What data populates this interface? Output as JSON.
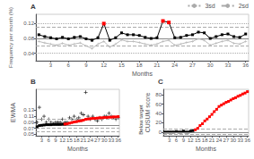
{
  "chart_data": [
    {
      "type": "line",
      "title": "A",
      "xlabel": "Months",
      "ylabel": "Frequency per month (%)",
      "xlim": [
        0.5,
        36.5
      ],
      "ylim": [
        0.02,
        0.145
      ],
      "xticks": [
        3,
        6,
        9,
        12,
        15,
        18,
        21,
        24,
        27,
        30,
        33,
        36
      ],
      "yticks": [
        0.04,
        0.08,
        0.12
      ],
      "grid": false,
      "legend": "upper right",
      "series": [
        {
          "type": "hline",
          "values": [
            0.08
          ],
          "color": "#888888",
          "line_style": "solid"
        },
        {
          "name": "3sd",
          "type": "hline",
          "values": [
            0.122,
            0.038
          ],
          "color": "#aaaaaa",
          "line_style": "dotted"
        },
        {
          "name": "2sd",
          "type": "hline",
          "values": [
            0.107,
            0.055
          ],
          "color": "#aaaaaa",
          "line_style": "dashed"
        },
        {
          "type": "line",
          "color": "#bbbbbb",
          "marker": "cross",
          "x": [
            1,
            2,
            3,
            4,
            5,
            6,
            7,
            8,
            9,
            10,
            11,
            12,
            13,
            14,
            15,
            16,
            17,
            18,
            19,
            20,
            21,
            22,
            23,
            24,
            25,
            26,
            27,
            28,
            29,
            30,
            31,
            32,
            33,
            34,
            35,
            36
          ],
          "values": [
            0.072,
            0.068,
            0.065,
            0.062,
            0.067,
            0.062,
            0.065,
            0.068,
            0.06,
            0.053,
            0.065,
            0.072,
            0.057,
            0.065,
            0.076,
            0.072,
            0.072,
            0.069,
            0.065,
            0.062,
            0.065,
            0.072,
            0.075,
            0.062,
            0.065,
            0.069,
            0.072,
            0.079,
            0.075,
            0.062,
            0.067,
            0.072,
            0.075,
            0.067,
            0.065,
            0.072
          ]
        },
        {
          "type": "line",
          "color": "#000000",
          "marker": "square",
          "x": [
            1,
            2,
            3,
            4,
            5,
            6,
            7,
            8,
            9,
            10,
            11,
            12,
            13,
            14,
            15,
            16,
            17,
            18,
            19,
            20,
            21,
            22,
            23,
            24,
            25,
            26,
            27,
            28,
            29,
            30,
            31,
            32,
            33,
            34,
            35,
            36
          ],
          "values": [
            0.09,
            0.085,
            0.082,
            0.079,
            0.083,
            0.079,
            0.083,
            0.085,
            0.079,
            0.075,
            0.082,
            0.12,
            0.075,
            0.082,
            0.095,
            0.09,
            0.09,
            0.088,
            0.083,
            0.08,
            0.082,
            0.127,
            0.123,
            0.082,
            0.083,
            0.088,
            0.09,
            0.097,
            0.095,
            0.08,
            0.085,
            0.09,
            0.092,
            0.085,
            0.083,
            0.092
          ],
          "colors": [
            "#000000",
            "#000000",
            "#000000",
            "#000000",
            "#000000",
            "#000000",
            "#000000",
            "#000000",
            "#000000",
            "#000000",
            "#000000",
            "#ff0000",
            "#000000",
            "#000000",
            "#000000",
            "#000000",
            "#000000",
            "#000000",
            "#000000",
            "#000000",
            "#000000",
            "#ff0000",
            "#ff0000",
            "#000000",
            "#000000",
            "#000000",
            "#000000",
            "#000000",
            "#000000",
            "#000000",
            "#000000",
            "#000000",
            "#000000",
            "#000000",
            "#000000",
            "#000000"
          ]
        }
      ]
    },
    {
      "type": "line",
      "title": "B",
      "xlabel": "Months",
      "ylabel": "EWMA",
      "xlim": [
        0.5,
        36.5
      ],
      "ylim": [
        0.045,
        0.2
      ],
      "xticks": [
        3,
        6,
        9,
        12,
        15,
        18,
        21,
        24,
        27,
        30,
        33,
        36
      ],
      "yticks": [
        0.05,
        0.07,
        0.09,
        0.11,
        0.13
      ],
      "grid": false,
      "series": [
        {
          "type": "hline",
          "values": [
            0.08
          ],
          "color": "#888888",
          "line_style": "solid"
        },
        {
          "type": "hline",
          "values": [
            0.095,
            0.067,
            0.057
          ],
          "color": "#aaaaaa",
          "line_style": "dashed"
        },
        {
          "type": "scatter",
          "color": "#000000",
          "marker": "cross",
          "x": [
            1,
            2,
            3,
            4,
            5,
            6,
            7,
            8,
            9,
            10,
            11,
            12,
            13,
            14,
            15,
            16,
            17,
            18,
            19,
            20,
            21,
            22,
            23,
            24,
            25,
            26,
            27,
            28,
            29,
            30,
            31,
            32,
            33,
            34,
            35,
            36
          ],
          "values": [
            0.09,
            0.14,
            0.1,
            0.11,
            0.09,
            0.1,
            0.09,
            0.085,
            0.09,
            0.09,
            0.09,
            0.1,
            0.09,
            0.09,
            0.105,
            0.1,
            0.11,
            0.1,
            0.105,
            0.12,
            0.115,
            0.19,
            0.11,
            0.1,
            0.11,
            0.1,
            0.095,
            0.105,
            0.1,
            0.11,
            0.11,
            0.12,
            0.11,
            0.105,
            0.1,
            0.105
          ]
        },
        {
          "type": "line",
          "color": "#000000",
          "marker": "square",
          "x": [
            1,
            2,
            3,
            4,
            5,
            6,
            7,
            8,
            9,
            10,
            11,
            12,
            13
          ],
          "values": [
            0.075,
            0.079,
            0.08,
            0.081,
            0.082,
            0.082,
            0.082,
            0.083,
            0.083,
            0.083,
            0.083,
            0.084,
            0.084
          ]
        },
        {
          "type": "line",
          "color": "#ff0000",
          "marker": "square",
          "x": [
            13,
            14,
            15,
            16,
            17,
            18,
            19,
            20,
            21,
            22,
            23,
            24,
            25,
            26,
            27,
            28,
            29,
            30,
            31,
            32,
            33,
            34,
            35,
            36
          ],
          "values": [
            0.084,
            0.085,
            0.087,
            0.089,
            0.091,
            0.092,
            0.094,
            0.095,
            0.097,
            0.1,
            0.101,
            0.102,
            0.103,
            0.103,
            0.104,
            0.105,
            0.105,
            0.106,
            0.106,
            0.107,
            0.107,
            0.108,
            0.108,
            0.109
          ]
        }
      ]
    },
    {
      "type": "line",
      "title": "C",
      "xlabel": "Months",
      "ylabel": "CUSUM score",
      "annotations": [
        "Below target"
      ],
      "xlim": [
        0.5,
        36.5
      ],
      "ylim": [
        -8,
        92
      ],
      "xticks": [
        3,
        6,
        9,
        12,
        15,
        18,
        21,
        24,
        27,
        30,
        33,
        36
      ],
      "yticks": [
        0,
        20,
        40,
        60,
        80
      ],
      "grid": false,
      "series": [
        {
          "type": "hline",
          "values": [
            0
          ],
          "color": "#888888",
          "line_style": "solid"
        },
        {
          "type": "hline",
          "values": [
            7,
            -4
          ],
          "color": "#aaaaaa",
          "line_style": "dashed"
        },
        {
          "type": "line",
          "color": "#000000",
          "marker": "square",
          "x": [
            1,
            2,
            3,
            4,
            5,
            6,
            7,
            8,
            9,
            10,
            11,
            12,
            13
          ],
          "values": [
            0,
            0,
            0,
            0,
            0,
            1,
            0,
            0,
            2,
            0,
            0,
            2,
            3
          ]
        },
        {
          "type": "line",
          "color": "#ff0000",
          "marker": "square",
          "x": [
            14,
            15,
            16,
            17,
            18,
            19,
            20,
            21,
            22,
            23,
            24,
            25,
            26,
            27,
            28,
            29,
            30,
            31,
            32,
            33,
            34,
            35,
            36
          ],
          "values": [
            5,
            8,
            14,
            18,
            24,
            28,
            33,
            38,
            44,
            49,
            55,
            58,
            61,
            64,
            66,
            69,
            72,
            74,
            77,
            79,
            82,
            84,
            87
          ]
        }
      ]
    }
  ]
}
